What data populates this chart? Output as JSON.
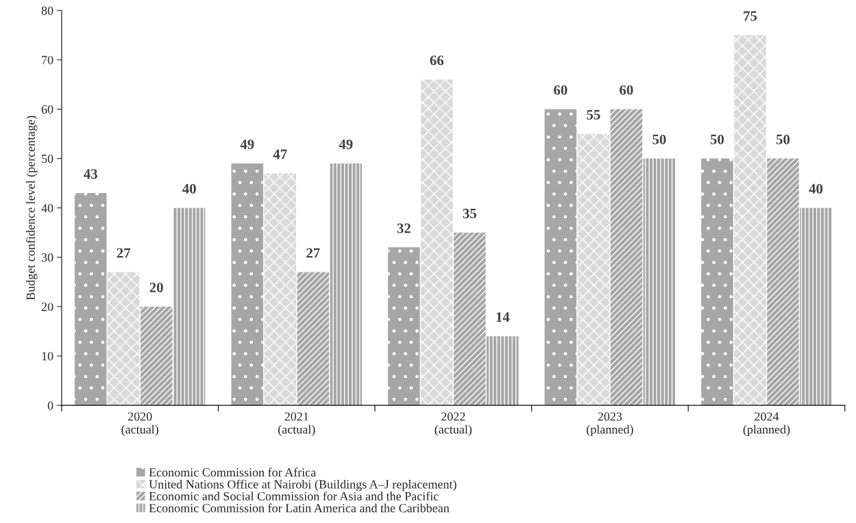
{
  "chart_data": {
    "type": "bar",
    "ylabel": "Budget confidence level (percentage)",
    "categories": [
      "2020\n(actual)",
      "2021\n(actual)",
      "2022\n(actual)",
      "2023\n(planned)",
      "2024\n(planned)"
    ],
    "series": [
      {
        "name": "Economic Commission for Africa",
        "color": "#a6a6a6",
        "values": [
          43,
          49,
          32,
          60,
          50
        ]
      },
      {
        "name": "United Nations Office at Nairobi (Buildings A–J replacement)",
        "color": "#d9d9d9",
        "values": [
          27,
          47,
          66,
          55,
          75
        ]
      },
      {
        "name": "Economic and Social Commission for Asia and the Pacific",
        "color": "#a6a6a6",
        "values": [
          20,
          27,
          35,
          60,
          50
        ]
      },
      {
        "name": "Economic Commission for Latin America and the Caribbean",
        "color": "#a6a6a6",
        "values": [
          40,
          49,
          14,
          50,
          40
        ]
      }
    ],
    "ylim": [
      0,
      80
    ],
    "yticks": [
      0,
      10,
      20,
      30,
      40,
      50,
      60,
      70,
      80
    ],
    "data_labels": true,
    "grid": false,
    "legend": "bottom"
  }
}
